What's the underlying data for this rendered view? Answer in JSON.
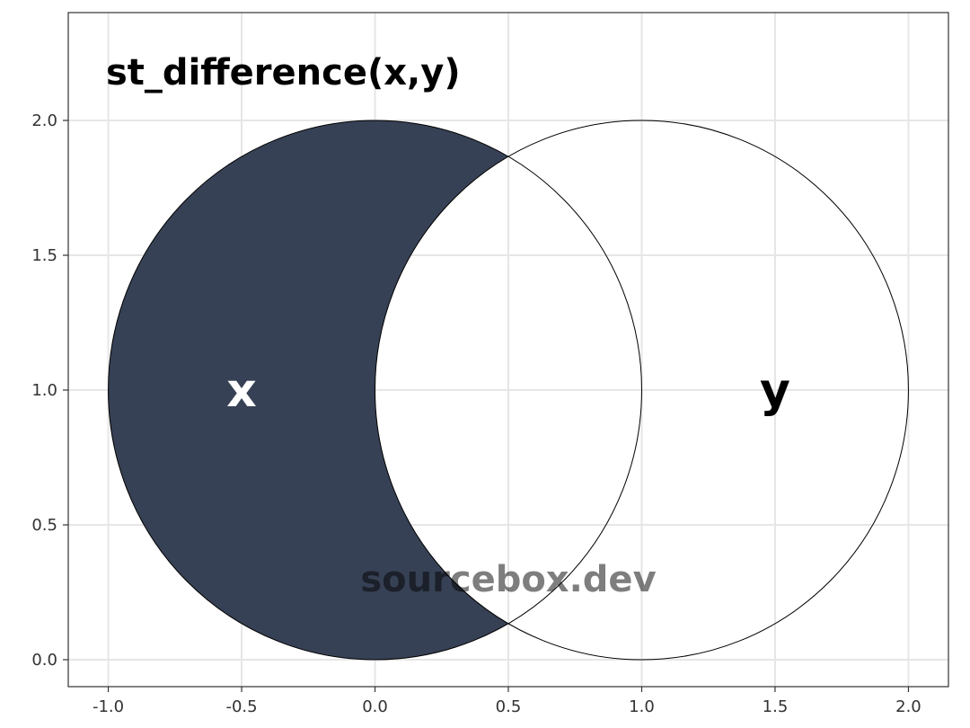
{
  "chart_data": {
    "type": "venn",
    "title": "st_difference(x,y)",
    "xlim": [
      -1.15,
      2.15
    ],
    "ylim": [
      -0.1,
      2.4
    ],
    "x_ticks": [
      -1.0,
      -0.5,
      0.0,
      0.5,
      1.0,
      1.5,
      2.0
    ],
    "y_ticks": [
      0.0,
      0.5,
      1.0,
      1.5,
      2.0
    ],
    "x_tick_labels": [
      "-1.0",
      "-0.5",
      "0.0",
      "0.5",
      "1.0",
      "1.5",
      "2.0"
    ],
    "y_tick_labels": [
      "0.0",
      "0.5",
      "1.0",
      "1.5",
      "2.0"
    ],
    "grid": true,
    "circles": [
      {
        "name": "x",
        "center": [
          0.0,
          1.0
        ],
        "radius": 1.0
      },
      {
        "name": "y",
        "center": [
          1.0,
          1.0
        ],
        "radius": 1.0
      }
    ],
    "labels": [
      {
        "text": "x",
        "position": [
          -0.5,
          1.0
        ],
        "color": "#ffffff"
      },
      {
        "text": "y",
        "position": [
          1.5,
          1.0
        ],
        "color": "#000000"
      }
    ],
    "highlighted_region": "difference x minus y",
    "fill_color": "#374155",
    "watermark": "sourcebox.dev",
    "watermark_position": [
      0.5,
      0.3
    ]
  }
}
